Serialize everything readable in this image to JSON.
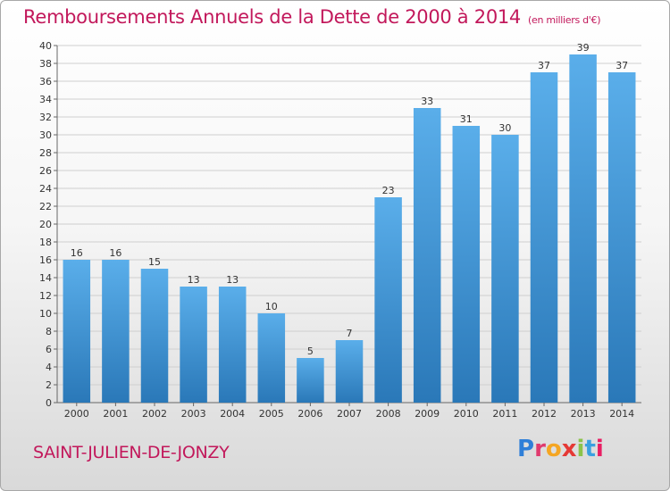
{
  "page": {
    "title": "Remboursements Annuels de la Dette de 2000 à 2014",
    "unit": "(en milliers d'€)",
    "commune": "SAINT-JULIEN-DE-JONZY",
    "logo": "Proxiti"
  },
  "colors": {
    "title": "#c2185b",
    "bar_top": "#5aaeea",
    "bar_bottom": "#2a78b8",
    "grid": "#cfcfcf",
    "axis_text": "#333333"
  },
  "chart_data": {
    "type": "bar",
    "title": "Remboursements Annuels de la Dette de 2000 à 2014",
    "xlabel": "",
    "ylabel": "",
    "categories": [
      "2000",
      "2001",
      "2002",
      "2003",
      "2004",
      "2005",
      "2006",
      "2007",
      "2008",
      "2009",
      "2010",
      "2011",
      "2012",
      "2013",
      "2014"
    ],
    "values": [
      16,
      16,
      15,
      13,
      13,
      10,
      5,
      7,
      23,
      33,
      31,
      30,
      37,
      39,
      37
    ],
    "ylim": [
      0,
      40
    ],
    "ytick_step": 2,
    "grid": true
  }
}
